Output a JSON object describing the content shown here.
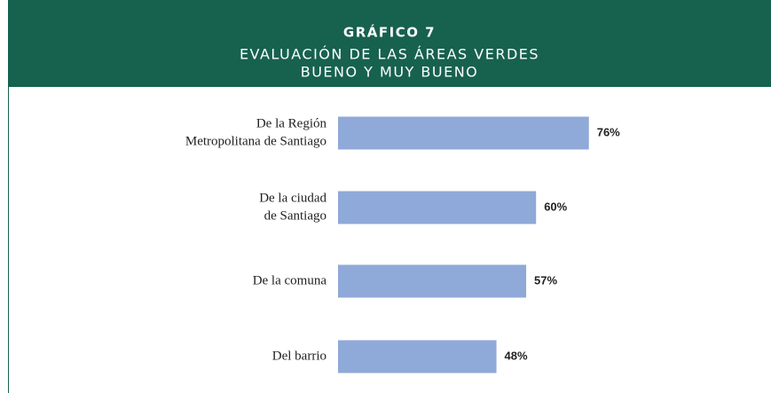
{
  "chart_data": {
    "type": "bar",
    "title": "GRÁFICO 7",
    "subtitle": [
      "EVALUACIÓN DE LAS ÁREAS VERDES",
      "BUENO Y MUY BUENO"
    ],
    "categories": [
      [
        "De la Región",
        "Metropolitana de Santiago"
      ],
      [
        "De la ciudad",
        "de Santiago"
      ],
      [
        "De la comuna"
      ],
      [
        "Del barrio"
      ]
    ],
    "values": [
      76,
      60,
      57,
      48
    ],
    "value_labels": [
      "76%",
      "60%",
      "57%",
      "48%"
    ],
    "color": "#8fa9d8"
  }
}
